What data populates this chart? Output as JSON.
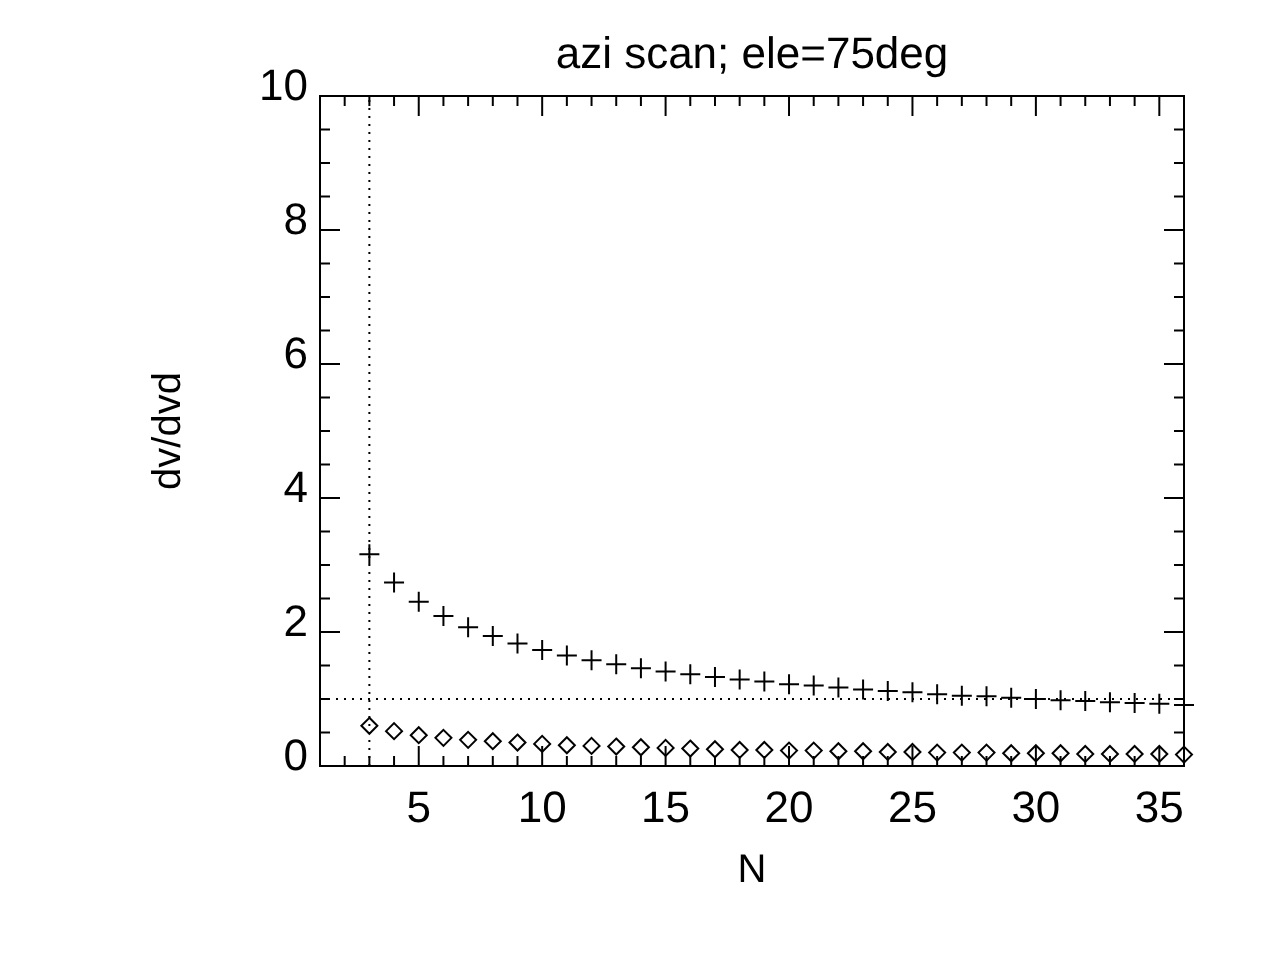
{
  "chart_data": {
    "type": "scatter",
    "title": "azi scan; ele=75deg",
    "xlabel": "N",
    "ylabel": "dv/dvd",
    "x": [
      3,
      4,
      5,
      6,
      7,
      8,
      9,
      10,
      11,
      12,
      13,
      14,
      15,
      16,
      17,
      18,
      19,
      20,
      21,
      22,
      23,
      24,
      25,
      26,
      27,
      28,
      29,
      30,
      31,
      32,
      33,
      34,
      35,
      36
    ],
    "series": [
      {
        "color": "#000000",
        "marker": "cross",
        "values": [
          3.16,
          2.74,
          2.45,
          2.24,
          2.07,
          1.94,
          1.83,
          1.73,
          1.65,
          1.58,
          1.52,
          1.46,
          1.41,
          1.37,
          1.33,
          1.29,
          1.26,
          1.22,
          1.2,
          1.17,
          1.14,
          1.12,
          1.1,
          1.07,
          1.05,
          1.04,
          1.02,
          1.0,
          0.98,
          0.97,
          0.95,
          0.94,
          0.93,
          0.91
        ]
      },
      {
        "color": "#000000",
        "marker": "diamond",
        "values": [
          0.6,
          0.52,
          0.46,
          0.42,
          0.39,
          0.37,
          0.35,
          0.33,
          0.31,
          0.3,
          0.29,
          0.28,
          0.27,
          0.26,
          0.25,
          0.24,
          0.24,
          0.23,
          0.23,
          0.22,
          0.22,
          0.21,
          0.21,
          0.2,
          0.2,
          0.2,
          0.19,
          0.19,
          0.19,
          0.18,
          0.18,
          0.18,
          0.18,
          0.17
        ]
      }
    ],
    "xlim": [
      1,
      36
    ],
    "xticks": [
      {
        "value": 2,
        "label": null
      },
      {
        "value": 3,
        "label": null
      },
      {
        "value": 4,
        "label": null
      },
      5,
      {
        "value": 6,
        "label": null
      },
      {
        "value": 7,
        "label": null
      },
      {
        "value": 8,
        "label": null
      },
      {
        "value": 9,
        "label": null
      },
      10,
      {
        "value": 11,
        "label": null
      },
      {
        "value": 12,
        "label": null
      },
      {
        "value": 13,
        "label": null
      },
      {
        "value": 14,
        "label": null
      },
      15,
      {
        "value": 16,
        "label": null
      },
      {
        "value": 17,
        "label": null
      },
      {
        "value": 18,
        "label": null
      },
      {
        "value": 19,
        "label": null
      },
      20,
      {
        "value": 21,
        "label": null
      },
      {
        "value": 22,
        "label": null
      },
      {
        "value": 23,
        "label": null
      },
      {
        "value": 24,
        "label": null
      },
      25,
      {
        "value": 26,
        "label": null
      },
      {
        "value": 27,
        "label": null
      },
      {
        "value": 28,
        "label": null
      },
      {
        "value": 29,
        "label": null
      },
      30,
      {
        "value": 31,
        "label": null
      },
      {
        "value": 32,
        "label": null
      },
      {
        "value": 33,
        "label": null
      },
      {
        "value": 34,
        "label": null
      },
      35
    ],
    "ylim": [
      0,
      10
    ],
    "yticks": [
      0,
      {
        "value": 0.5,
        "label": null
      },
      {
        "value": 1,
        "label": null
      },
      {
        "value": 1.5,
        "label": null
      },
      2,
      {
        "value": 2.5,
        "label": null
      },
      {
        "value": 3,
        "label": null
      },
      {
        "value": 3.5,
        "label": null
      },
      4,
      {
        "value": 4.5,
        "label": null
      },
      {
        "value": 5,
        "label": null
      },
      {
        "value": 5.5,
        "label": null
      },
      6,
      {
        "value": 6.5,
        "label": null
      },
      {
        "value": 7,
        "label": null
      },
      {
        "value": 7.5,
        "label": null
      },
      8,
      {
        "value": 8.5,
        "label": null
      },
      {
        "value": 9,
        "label": null
      },
      {
        "value": 9.5,
        "label": null
      },
      10
    ],
    "ref_lines": [
      {
        "axis": "x",
        "value": 3,
        "line_style": "dotted"
      },
      {
        "axis": "y",
        "value": 1,
        "line_style": "dotted"
      }
    ],
    "grid": false
  }
}
